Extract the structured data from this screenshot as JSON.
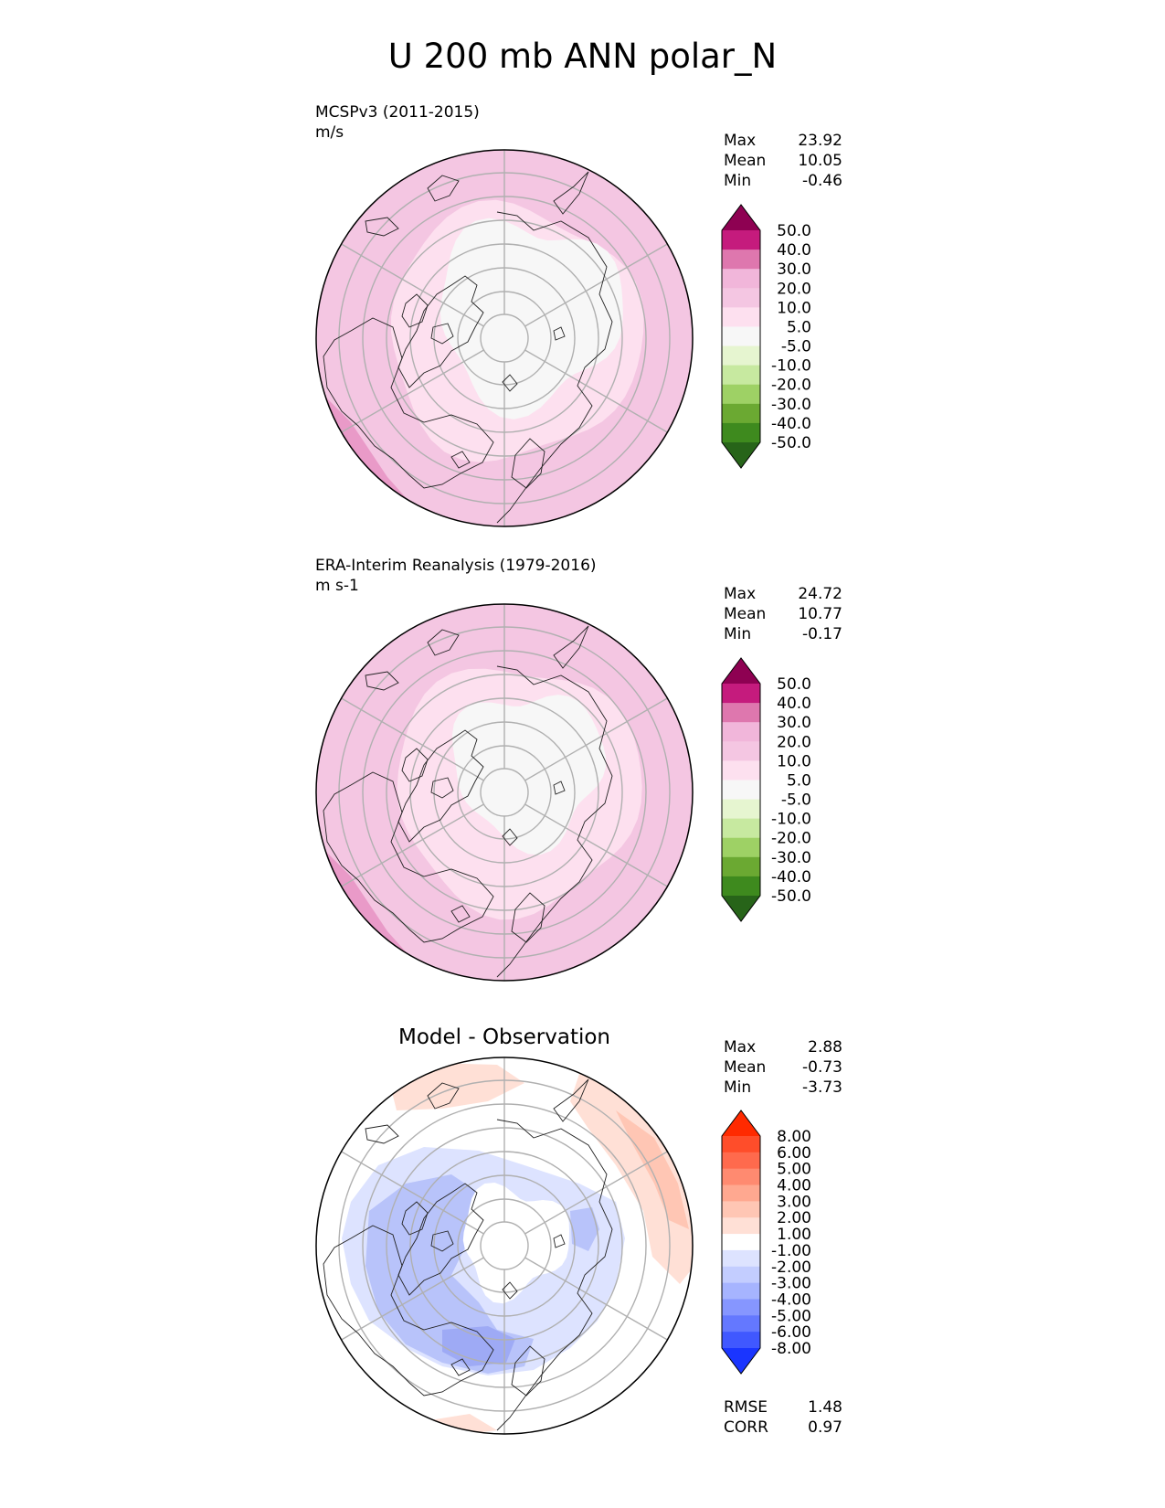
{
  "title": "U 200 mb ANN polar_N",
  "panels": [
    {
      "title_lines": [
        "MCSPv3 (2011-2015)",
        "m/s"
      ],
      "stats": [
        {
          "label": "Max",
          "value": "23.92"
        },
        {
          "label": "Mean",
          "value": "10.05"
        },
        {
          "label": "Min",
          "value": "-0.46"
        }
      ]
    },
    {
      "title_lines": [
        "ERA-Interim Reanalysis (1979-2016)",
        "m s-1"
      ],
      "stats": [
        {
          "label": "Max",
          "value": "24.72"
        },
        {
          "label": "Mean",
          "value": "10.77"
        },
        {
          "label": "Min",
          "value": "-0.17"
        }
      ]
    },
    {
      "title_center": "Model - Observation",
      "stats": [
        {
          "label": "Max",
          "value": "2.88"
        },
        {
          "label": "Mean",
          "value": "-0.73"
        },
        {
          "label": "Min",
          "value": "-3.73"
        }
      ],
      "metrics": [
        {
          "label": "RMSE",
          "value": "1.48"
        },
        {
          "label": "CORR",
          "value": "0.97"
        }
      ]
    }
  ],
  "colorbars": {
    "field": {
      "labels": [
        "50.0",
        "40.0",
        "30.0",
        "20.0",
        "10.0",
        "5.0",
        "-5.0",
        "-10.0",
        "-20.0",
        "-30.0",
        "-40.0",
        "-50.0"
      ],
      "colors": [
        "#8e0152",
        "#c51b7d",
        "#de77ae",
        "#f1b6da",
        "#f4c6e2",
        "#fde0ef",
        "#f7f7f7",
        "#e6f5d0",
        "#c7e9a0",
        "#9ed165",
        "#6ba932",
        "#3e8a1e",
        "#276419"
      ]
    },
    "diff": {
      "labels": [
        "8.00",
        "6.00",
        "5.00",
        "4.00",
        "3.00",
        "2.00",
        "1.00",
        "-1.00",
        "-2.00",
        "-3.00",
        "-4.00",
        "-5.00",
        "-6.00",
        "-8.00"
      ],
      "colors": [
        "#ff2a00",
        "#ff4d2a",
        "#ff6a4d",
        "#ff8a70",
        "#ffa890",
        "#ffc6b4",
        "#ffe0d6",
        "#ffffff",
        "#dde3ff",
        "#c3cdff",
        "#a6b4ff",
        "#8696ff",
        "#6478ff",
        "#4058ff",
        "#1a35ff"
      ]
    }
  },
  "colors": {
    "pole": "#f7f7f7",
    "light_pink": "#fde0ef",
    "pink": "#f4c6e2",
    "deep_pink": "#e99ac8",
    "diff_light_blue": "#dde3ff",
    "diff_blue": "#b8c3fa",
    "diff_mid_blue": "#9eaaf5",
    "diff_light_red": "#ffe0d6",
    "diff_red": "#ffc6b4",
    "grid": "#b0b0b0"
  }
}
